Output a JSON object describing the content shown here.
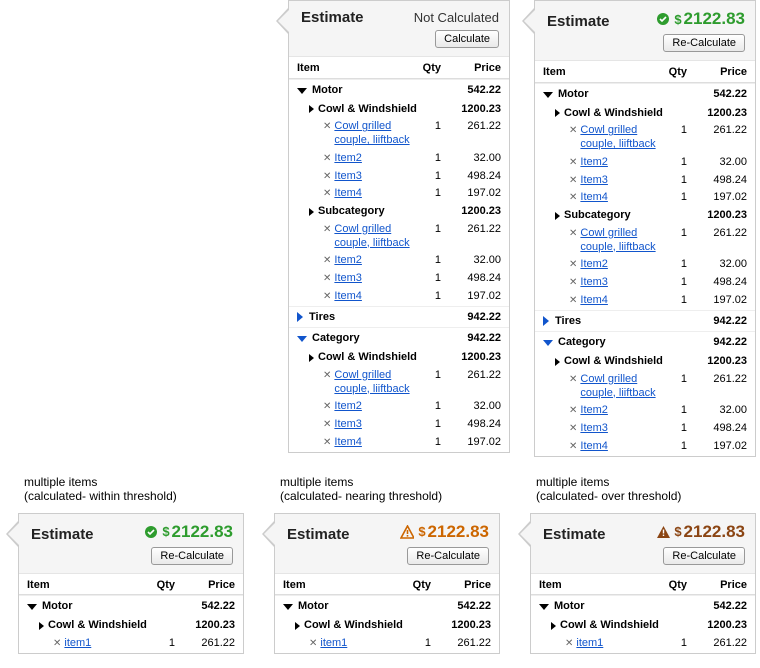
{
  "labels": {
    "estimate": "Estimate",
    "calculate": "Calculate",
    "recalculate": "Re-Calculate",
    "item": "Item",
    "qty": "Qty",
    "price": "Price",
    "not_calculated": "Not Calculated",
    "currency": "$",
    "delete_glyph": "✕",
    "multiple_items": "multiple items"
  },
  "colors": {
    "link": "#1155cc",
    "green": "#2e9c2e",
    "orange": "#cc6600",
    "brown": "#8b4513",
    "border": "#cccccc",
    "head_bg": "#f5f5f5"
  },
  "panels": {
    "p1": {
      "status": "not_calculated",
      "button": "calculate"
    },
    "p2": {
      "status": "calculated",
      "value": "2122.83",
      "color": "green",
      "icon": "check",
      "button": "recalculate"
    },
    "p3": {
      "caption_sub": "(calculated- within threshold)",
      "value": "2122.83",
      "color": "green",
      "icon": "check",
      "button": "recalculate"
    },
    "p4": {
      "caption_sub": "(calculated- nearing threshold)",
      "value": "2122.83",
      "color": "orange",
      "icon": "warn-outline",
      "button": "recalculate"
    },
    "p5": {
      "caption_sub": "(calculated- over threshold)",
      "value": "2122.83",
      "color": "brown",
      "icon": "warn-solid",
      "button": "recalculate"
    }
  },
  "tree_full": {
    "categories": [
      {
        "name": "Motor",
        "expanded": true,
        "price": "542.22",
        "subs": [
          {
            "name": "Cowl & Windshield",
            "price": "1200.23",
            "items": [
              {
                "label": "Cowl grilled couple, liiftback",
                "qty": "1",
                "price": "261.22"
              },
              {
                "label": "Item2",
                "qty": "1",
                "price": "32.00"
              },
              {
                "label": "Item3",
                "qty": "1",
                "price": "498.24"
              },
              {
                "label": "Item4",
                "qty": "1",
                "price": "197.02"
              }
            ]
          },
          {
            "name": "Subcategory",
            "price": "1200.23",
            "items": [
              {
                "label": "Cowl grilled couple, liiftback",
                "qty": "1",
                "price": "261.22"
              },
              {
                "label": "Item2",
                "qty": "1",
                "price": "32.00"
              },
              {
                "label": "Item3",
                "qty": "1",
                "price": "498.24"
              },
              {
                "label": "Item4",
                "qty": "1",
                "price": "197.02"
              }
            ]
          }
        ]
      },
      {
        "name": "Tires",
        "expanded": false,
        "price": "942.22",
        "blue": true
      },
      {
        "name": "Category",
        "expanded": true,
        "price": "942.22",
        "blue": true,
        "subs": [
          {
            "name": "Cowl & Windshield",
            "price": "1200.23",
            "items": [
              {
                "label": "Cowl grilled couple, liiftback",
                "qty": "1",
                "price": "261.22"
              },
              {
                "label": "Item2",
                "qty": "1",
                "price": "32.00"
              },
              {
                "label": "Item3",
                "qty": "1",
                "price": "498.24"
              },
              {
                "label": "Item4",
                "qty": "1",
                "price": "197.02"
              }
            ]
          }
        ]
      }
    ]
  },
  "tree_short": {
    "categories": [
      {
        "name": "Motor",
        "expanded": true,
        "price": "542.22",
        "subs": [
          {
            "name": "Cowl & Windshield",
            "price": "1200.23",
            "items": [
              {
                "label": "item1",
                "qty": "1",
                "price": "261.22"
              }
            ]
          }
        ]
      }
    ]
  }
}
